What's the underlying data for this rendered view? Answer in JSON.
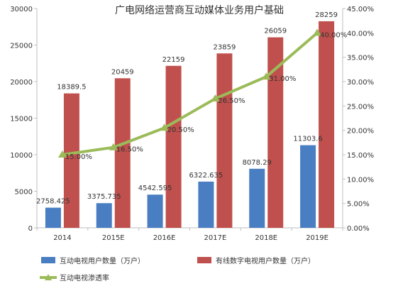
{
  "chart_data": {
    "type": "bar",
    "title": "广电网络运营商互动媒体业务用户基础",
    "categories": [
      "2014",
      "2015E",
      "2016E",
      "2017E",
      "2018E",
      "2019E"
    ],
    "series": [
      {
        "name": "互动电视用户数量（万户）",
        "type": "bar",
        "axis": "left",
        "color": "#4a7ec2",
        "values": [
          2758.425,
          3375.735,
          4542.595,
          6322.635,
          8078.29,
          11303.6
        ],
        "labels": [
          "2758.425",
          "3375.735",
          "4542.595",
          "6322.635",
          "8078.29",
          "11303.6"
        ]
      },
      {
        "name": "有线数字电视用户数量（万户）",
        "type": "bar",
        "axis": "left",
        "color": "#c0504d",
        "values": [
          18389.5,
          20459,
          22159,
          23859,
          26059,
          28259
        ],
        "labels": [
          "18389.5",
          "20459",
          "22159",
          "23859",
          "26059",
          "28259"
        ]
      },
      {
        "name": "互动电视渗透率",
        "type": "line",
        "axis": "right",
        "color": "#9bbb59",
        "values": [
          15.0,
          16.5,
          20.5,
          26.5,
          31.0,
          40.0
        ],
        "labels": [
          "15.00%",
          "16.50%",
          "20.50%",
          "26.50%",
          "31.00%",
          "40.00%"
        ]
      }
    ],
    "y_left": {
      "ylim": [
        0,
        30000
      ],
      "ticks": [
        "0",
        "5000",
        "10000",
        "15000",
        "20000",
        "25000",
        "30000"
      ]
    },
    "y_right": {
      "ylim": [
        0,
        45
      ],
      "ticks": [
        "0.00%",
        "5.00%",
        "10.00%",
        "15.00%",
        "20.00%",
        "25.00%",
        "30.00%",
        "35.00%",
        "40.00%",
        "45.00%"
      ]
    },
    "xlabel": "",
    "ylabel": "",
    "grid": false,
    "legend_position": "bottom"
  }
}
